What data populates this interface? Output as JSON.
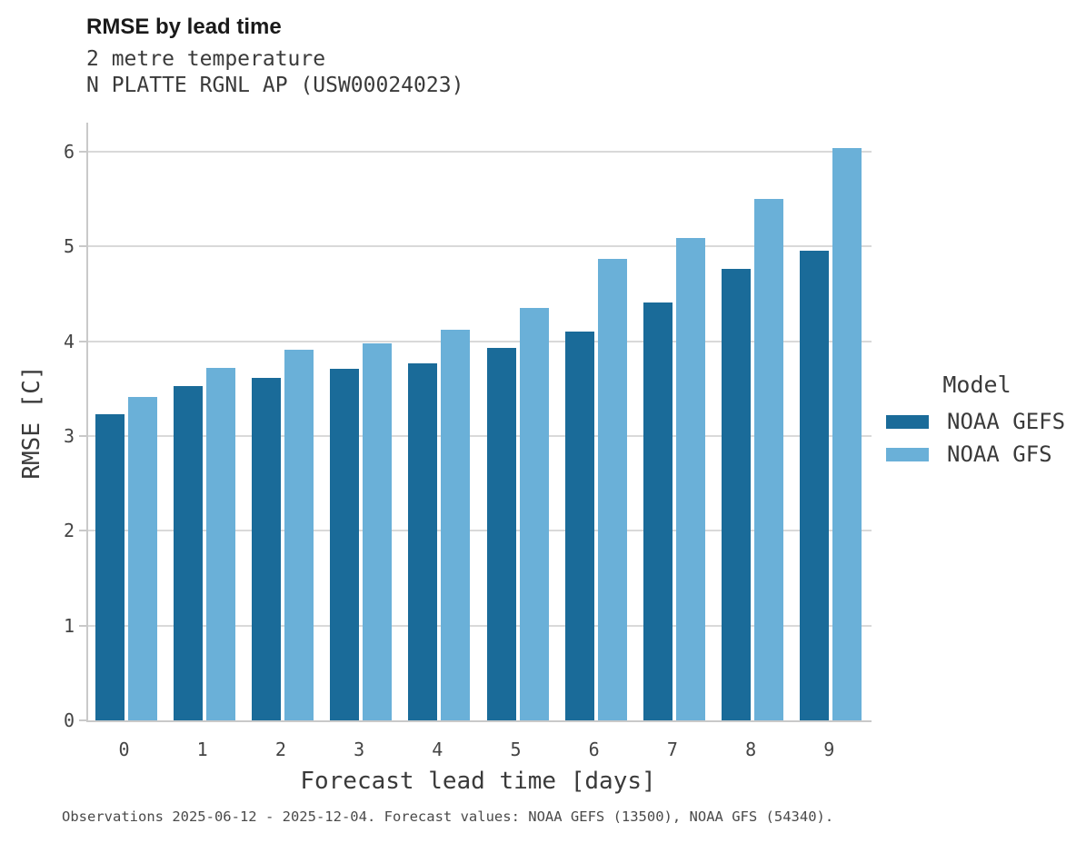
{
  "header": {
    "title": "RMSE by lead time",
    "subtitle1": "2 metre temperature",
    "subtitle2": "N PLATTE RGNL AP (USW00024023)"
  },
  "chart_data": {
    "type": "bar",
    "title": "RMSE by lead time",
    "subtitle": [
      "2 metre temperature",
      "N PLATTE RGNL AP (USW00024023)"
    ],
    "categories": [
      0,
      1,
      2,
      3,
      4,
      5,
      6,
      7,
      8,
      9
    ],
    "series": [
      {
        "name": "NOAA GEFS",
        "color": "#1a6b99",
        "values": [
          3.23,
          3.53,
          3.61,
          3.71,
          3.77,
          3.93,
          4.1,
          4.41,
          4.76,
          4.96
        ]
      },
      {
        "name": "NOAA GFS",
        "color": "#6ab0d8",
        "values": [
          3.41,
          3.72,
          3.91,
          3.98,
          4.12,
          4.35,
          4.87,
          5.09,
          5.5,
          6.04
        ]
      }
    ],
    "xlabel": "Forecast lead time [days]",
    "ylabel": "RMSE [C]",
    "ylim": [
      0,
      6.3
    ],
    "yticks": [
      0,
      1,
      2,
      3,
      4,
      5,
      6
    ],
    "grid": true,
    "legend_title": "Model",
    "legend_position": "right",
    "grid_color": "#d9d9d9",
    "axis_color": "#c9c9c9"
  },
  "caption": "Observations 2025-06-12 - 2025-12-04. Forecast values: NOAA GEFS (13500), NOAA GFS (54340)."
}
